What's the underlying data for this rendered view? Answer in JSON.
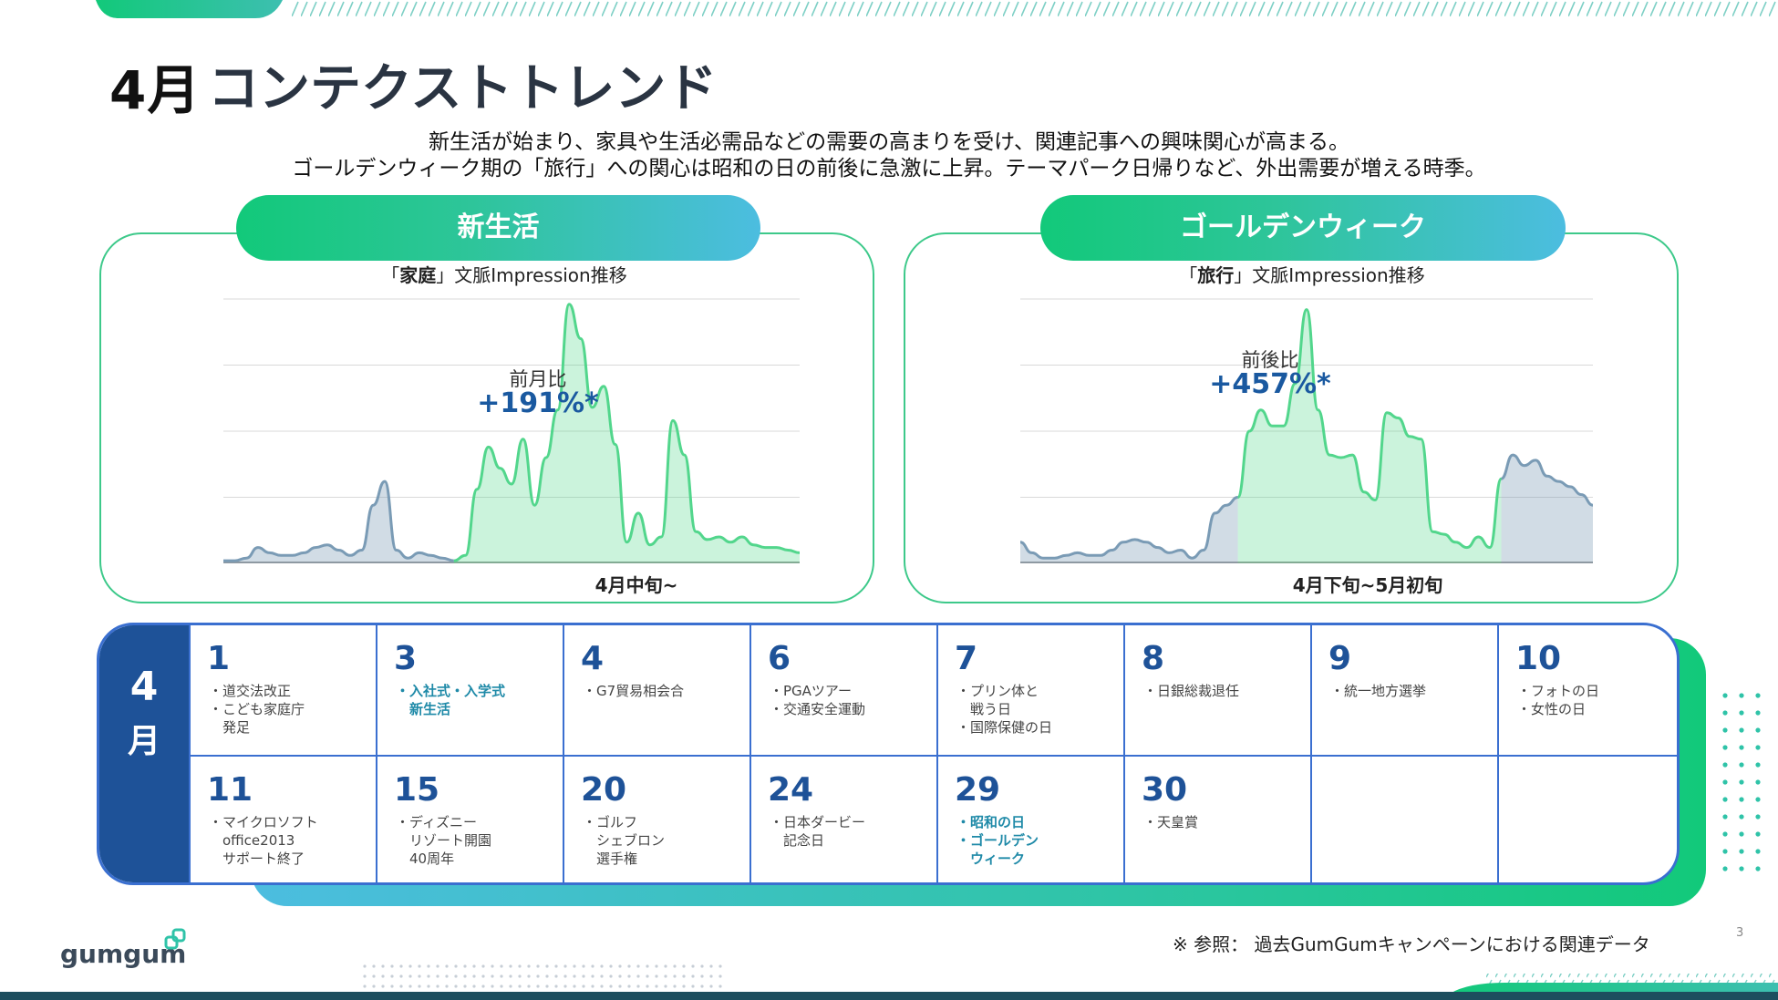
{
  "title": {
    "month": "4月",
    "text": "コンテクストトレンド"
  },
  "subtitle": {
    "line1": "新生活が始まり、家具や生活必需品などの需要の高まりを受け、関連記事への興味関心が高まる。",
    "line2": "ゴールデンウィーク期の「旅行」への関心は昭和の日の前後に急激に上昇。テーマパーク日帰りなど、外出需要が増える時季。"
  },
  "panels": [
    {
      "heading": "新生活",
      "chart_title_pre": "「",
      "chart_keyword": "家庭",
      "chart_title_post": "」文脈Impression推移",
      "ratio_label": "前月比",
      "ratio_value": "+191%*",
      "period_label": "4月中旬~"
    },
    {
      "heading": "ゴールデンウィーク",
      "chart_title_pre": "「",
      "chart_keyword": "旅行",
      "chart_title_post": "」文脈Impression推移",
      "ratio_label": "前後比",
      "ratio_value": "+457%*",
      "period_label": "4月下旬~5月初旬"
    }
  ],
  "chart_data": [
    {
      "type": "area",
      "title": "「家庭」文脈Impression推移",
      "ylim": [
        0,
        100
      ],
      "x": [
        0,
        1,
        2,
        3,
        4,
        5,
        6,
        7,
        8,
        9,
        10,
        11,
        12,
        13,
        14,
        15,
        16,
        17,
        18,
        19,
        20,
        21,
        22,
        23,
        24,
        25,
        26,
        27,
        28,
        29,
        30,
        31,
        32,
        33,
        34,
        35,
        36,
        37,
        38,
        39,
        40,
        41,
        42,
        43,
        44,
        45,
        46,
        47,
        48,
        49,
        50
      ],
      "values": [
        1,
        1,
        2,
        6,
        4,
        3,
        3,
        4,
        6,
        7,
        5,
        3,
        5,
        22,
        31,
        5,
        2,
        4,
        3,
        2,
        1,
        3,
        28,
        44,
        36,
        30,
        47,
        22,
        40,
        58,
        98,
        85,
        59,
        67,
        45,
        8,
        19,
        7,
        10,
        54,
        41,
        12,
        9,
        10,
        8,
        10,
        7,
        6,
        6,
        5,
        4
      ],
      "highlight_range": [
        20,
        50
      ],
      "series_colors": {
        "base": "#7a9bb5",
        "highlight": "#52d68c"
      }
    },
    {
      "type": "area",
      "title": "「旅行」文脈Impression推移",
      "ylim": [
        0,
        100
      ],
      "x": [
        0,
        1,
        2,
        3,
        4,
        5,
        6,
        7,
        8,
        9,
        10,
        11,
        12,
        13,
        14,
        15,
        16,
        17,
        18,
        19,
        20,
        21,
        22,
        23,
        24,
        25,
        26,
        27,
        28,
        29,
        30,
        31,
        32,
        33,
        34,
        35,
        36,
        37,
        38,
        39,
        40,
        41,
        42,
        43,
        44,
        45,
        46,
        47,
        48,
        49,
        50
      ],
      "values": [
        8,
        4,
        2,
        2,
        3,
        4,
        3,
        3,
        5,
        8,
        9,
        8,
        6,
        4,
        5,
        2,
        5,
        19,
        22,
        25,
        50,
        58,
        52,
        52,
        68,
        96,
        58,
        41,
        40,
        41,
        27,
        24,
        57,
        55,
        48,
        47,
        12,
        11,
        8,
        6,
        10,
        6,
        32,
        41,
        37,
        39,
        33,
        31,
        29,
        26,
        22
      ],
      "highlight_range": [
        19,
        42
      ],
      "series_colors": {
        "base": "#7a9bb5",
        "highlight": "#52d68c"
      }
    }
  ],
  "calendar": {
    "month_num": "4",
    "month_kanji": "月",
    "row1": [
      {
        "day": "1",
        "events": [
          "・道交法改正",
          "・こども家庭庁",
          "　発足"
        ],
        "hl": false
      },
      {
        "day": "3",
        "events": [
          "・入社式・入学式",
          "　新生活"
        ],
        "hl": true
      },
      {
        "day": "4",
        "events": [
          "・G7貿易相会合"
        ],
        "hl": false
      },
      {
        "day": "6",
        "events": [
          "・PGAツアー",
          "・交通安全運動"
        ],
        "hl": false
      },
      {
        "day": "7",
        "events": [
          "・プリン体と",
          "　戦う日",
          "・国際保健の日"
        ],
        "hl": false
      },
      {
        "day": "8",
        "events": [
          "・日銀総裁退任"
        ],
        "hl": false
      },
      {
        "day": "9",
        "events": [
          "・統一地方選挙"
        ],
        "hl": false
      },
      {
        "day": "10",
        "events": [
          "・フォトの日",
          "・女性の日"
        ],
        "hl": false
      }
    ],
    "row2": [
      {
        "day": "11",
        "events": [
          "・マイクロソフト",
          "　office2013",
          "　サポート終了"
        ],
        "hl": false
      },
      {
        "day": "15",
        "events": [
          "・ディズニー",
          "　リゾート開園",
          "　40周年"
        ],
        "hl": false
      },
      {
        "day": "20",
        "events": [
          "・ゴルフ",
          "　シェブロン",
          "　選手権"
        ],
        "hl": false
      },
      {
        "day": "24",
        "events": [
          "・日本ダービー",
          "　記念日"
        ],
        "hl": false
      },
      {
        "day": "29",
        "events": [
          "・昭和の日",
          "・ゴールデン",
          "　ウィーク"
        ],
        "hl": true
      },
      {
        "day": "30",
        "events": [
          "・天皇賞"
        ],
        "hl": false
      },
      {
        "day": "",
        "events": [],
        "hl": false
      },
      {
        "day": "",
        "events": [],
        "hl": false
      }
    ]
  },
  "footnote": "※ 参照： 過去GumGumキャンペーンにおける関連データ",
  "page_number": "3",
  "logo_text": "gumgum",
  "colors": {
    "green": "#12c97a",
    "blue": "#4cbde0",
    "navy": "#1e5298",
    "accent_text": "#1a59a0"
  }
}
